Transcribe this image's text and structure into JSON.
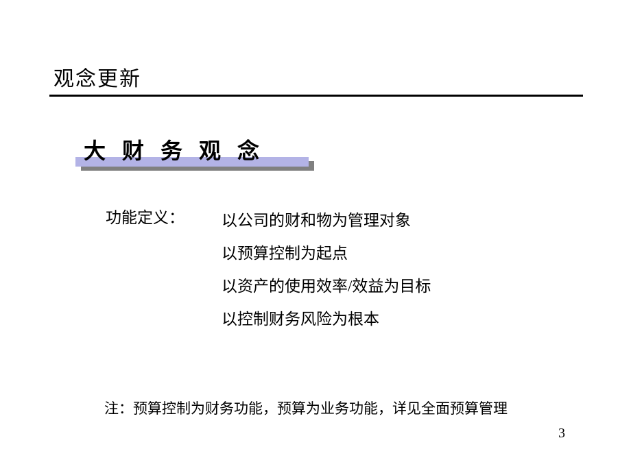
{
  "page_title": "观念更新",
  "subtitle": "大财务观念",
  "definition": {
    "label": "功能定义：",
    "lines": [
      "以公司的财和物为管理对象",
      "以预算控制为起点",
      "以资产的使用效率/效益为目标",
      "以控制财务风险为根本"
    ]
  },
  "footnote": "注：预算控制为财务功能，预算为业务功能，详见全面预算管理",
  "page_number": "3",
  "colors": {
    "background": "#ffffff",
    "text": "#000000",
    "divider": "#000000",
    "subtitle_bar": "#b3b3e6",
    "subtitle_shadow": "#808080"
  },
  "typography": {
    "page_title_size": 30,
    "subtitle_size": 32,
    "body_size": 23,
    "footnote_size": 21,
    "page_number_size": 20
  }
}
